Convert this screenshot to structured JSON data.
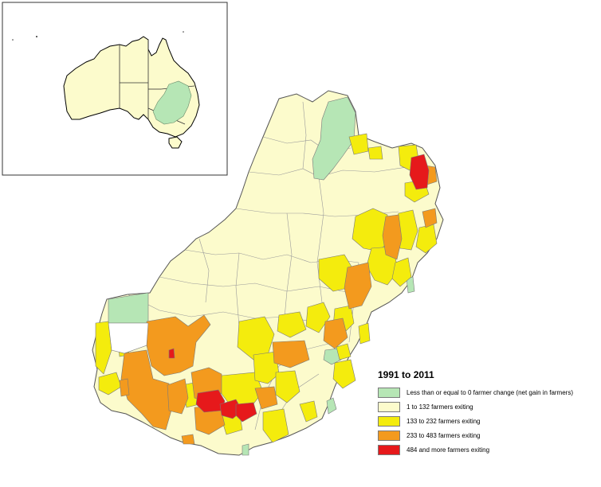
{
  "legend": {
    "title": "1991 to 2011",
    "items": [
      {
        "label": "Less than or equal to 0 farmer change (net gain in farmers)",
        "color": "#b6e6b5"
      },
      {
        "label": "1 to 132 farmers exiting",
        "color": "#fcfbcc"
      },
      {
        "label": "133 to 232 farmers exiting",
        "color": "#f4ec0d"
      },
      {
        "label": "233 to 483 farmers exiting",
        "color": "#f39a1e"
      },
      {
        "label": "484 and more farmers exiting",
        "color": "#e6191b"
      }
    ]
  },
  "colors": {
    "land": "#fcfbcc",
    "boundary": "#8c8c8c",
    "inset_highlight": "#b6e6b5"
  }
}
